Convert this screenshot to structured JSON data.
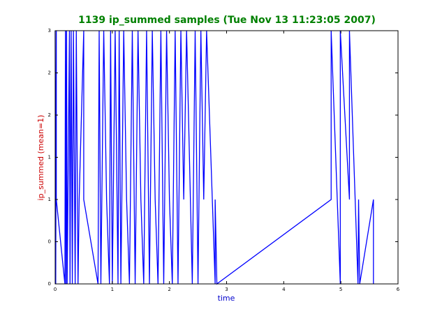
{
  "chart_data": {
    "type": "line",
    "title": "1139 ip_summed samples (Tue Nov 13 11:23:05 2007)",
    "title_color": "#008000",
    "xlabel": "time",
    "xlabel_color": "#0000cc",
    "ylabel": "ip_summed (mean=1)",
    "ylabel_color": "#cc0000",
    "xlim": [
      0,
      6
    ],
    "xticks": [
      0,
      1,
      2,
      3,
      4,
      5,
      6
    ],
    "ylim": [
      0,
      3
    ],
    "yticks": [
      0,
      {
        "value": 0.5,
        "label": "0"
      },
      1,
      {
        "value": 1.5,
        "label": "1"
      },
      2,
      {
        "value": 2.5,
        "label": "2"
      },
      3
    ],
    "series": [
      {
        "color": "#0000ff",
        "x": [
          0,
          0.01,
          0.02,
          0.02,
          0.17,
          0.18,
          0.19,
          0.2,
          0.21,
          0.25,
          0.26,
          0.28,
          0.3,
          0.32,
          0.35,
          0.37,
          0.4,
          0.42,
          0.5,
          0.5,
          0.75,
          0.77,
          0.8,
          0.85,
          0.9,
          0.95,
          0.97,
          1.0,
          1.05,
          1.1,
          1.12,
          1.15,
          1.2,
          1.25,
          1.3,
          1.35,
          1.4,
          1.45,
          1.5,
          1.55,
          1.6,
          1.65,
          1.7,
          1.75,
          1.8,
          1.85,
          1.9,
          1.95,
          2.0,
          2.05,
          2.1,
          2.15,
          2.2,
          2.25,
          2.3,
          2.4,
          2.45,
          2.5,
          2.55,
          2.6,
          2.65,
          2.8,
          2.8,
          2.83,
          4.83,
          4.83,
          4.99,
          4.99,
          5.15,
          5.15,
          5.3,
          5.31,
          5.33,
          5.57,
          5.57
        ],
        "values": [
          3,
          0,
          3,
          1,
          0,
          3,
          0,
          3,
          0,
          3,
          0,
          3,
          0,
          3,
          0,
          3,
          0,
          1,
          3,
          1,
          0,
          3,
          0,
          3,
          1,
          0,
          3,
          0,
          3,
          0,
          3,
          0,
          3,
          1,
          0,
          3,
          0,
          3,
          1,
          0,
          3,
          0,
          3,
          1,
          0,
          3,
          0,
          3,
          1,
          0,
          3,
          0,
          3,
          1,
          3,
          0,
          3,
          0,
          3,
          1,
          3,
          0,
          1,
          0,
          1,
          3,
          0,
          3,
          1,
          3,
          0,
          1,
          0,
          1,
          0
        ]
      }
    ]
  }
}
